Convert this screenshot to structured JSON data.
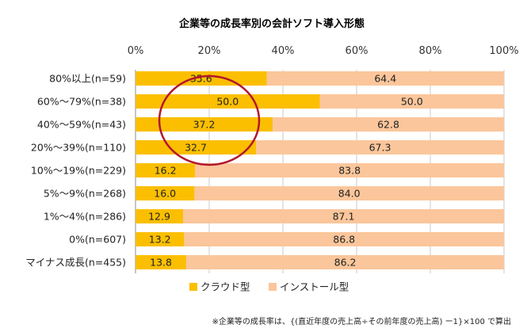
{
  "chart_data": {
    "type": "bar",
    "stacked": true,
    "orientation": "horizontal",
    "title": "企業等の成長率別の会計ソフト導入形態",
    "xlim": [
      0,
      100
    ],
    "x_ticks": [
      "0%",
      "20%",
      "40%",
      "60%",
      "80%",
      "100%"
    ],
    "grid": true,
    "legend_position": "bottom",
    "categories": [
      "80%以上(n=59)",
      "60%～79%(n=38)",
      "40%～59%(n=43)",
      "20%～39%(n=110)",
      "10%～19%(n=229)",
      "5%～9%(n=268)",
      "1%～4%(n=286)",
      "0%(n=607)",
      "マイナス成長(n=455)"
    ],
    "series": [
      {
        "name": "クラウド型",
        "color": "#fbbf00",
        "values": [
          35.6,
          50.0,
          37.2,
          32.7,
          16.2,
          16.0,
          12.9,
          13.2,
          13.8
        ],
        "labels": [
          "35.6",
          "50.0",
          "37.2",
          "32.7",
          "16.2",
          "16.0",
          "12.9",
          "13.2",
          "13.8"
        ]
      },
      {
        "name": "インストール型",
        "color": "#fbc69b",
        "values": [
          64.4,
          50.0,
          62.8,
          67.3,
          83.8,
          84.0,
          87.1,
          86.8,
          86.2
        ],
        "labels": [
          "64.4",
          "50.0",
          "62.8",
          "67.3",
          "83.8",
          "84.0",
          "87.1",
          "86.8",
          "86.2"
        ]
      }
    ],
    "annotation": {
      "shape": "ellipse",
      "color": "#b3172c",
      "highlighted_categories": [
        "80%以上(n=59)",
        "60%～79%(n=38)",
        "40%～59%(n=43)",
        "20%～39%(n=110)"
      ]
    },
    "footnote": "※企業等の成長率は、{(直近年度の売上高÷その前年度の売上高) ー1}×100 で算出"
  }
}
